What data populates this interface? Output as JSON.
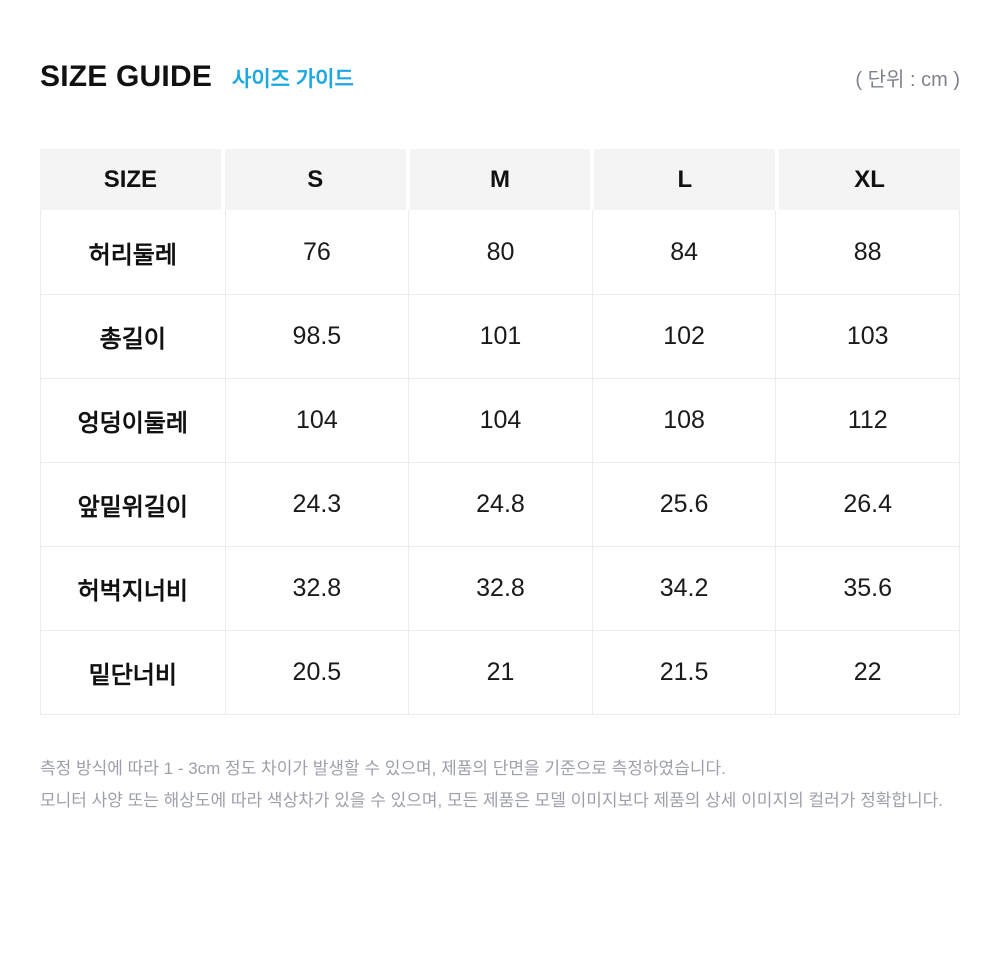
{
  "header": {
    "title": "SIZE GUIDE",
    "subtitle": "사이즈 가이드",
    "unit_label": "( 단위 : cm )"
  },
  "table": {
    "columns": [
      "SIZE",
      "S",
      "M",
      "L",
      "XL"
    ],
    "rows": [
      {
        "label": "허리둘레",
        "values": [
          "76",
          "80",
          "84",
          "88"
        ]
      },
      {
        "label": "총길이",
        "values": [
          "98.5",
          "101",
          "102",
          "103"
        ]
      },
      {
        "label": "엉덩이둘레",
        "values": [
          "104",
          "104",
          "108",
          "112"
        ]
      },
      {
        "label": "앞밑위길이",
        "values": [
          "24.3",
          "24.8",
          "25.6",
          "26.4"
        ]
      },
      {
        "label": "허벅지너비",
        "values": [
          "32.8",
          "32.8",
          "34.2",
          "35.6"
        ]
      },
      {
        "label": "밑단너비",
        "values": [
          "20.5",
          "21",
          "21.5",
          "22"
        ]
      }
    ]
  },
  "notes": [
    "측정 방식에 따라 1 - 3cm 정도 차이가 발생할 수 있으며, 제품의 단면을 기준으로 측정하였습니다.",
    "모니터 사양 또는 해상도에 따라 색상차가 있을 수 있으며, 모든 제품은 모델 이미지보다 제품의 상세 이미지의 컬러가 정확합니다."
  ],
  "colors": {
    "accent_blue": "#1CA8E3",
    "header_bg": "#F4F4F5",
    "border": "#ECECEC",
    "text": "#111111",
    "unit_text": "#7E838B",
    "note_text": "#9CA1A8"
  }
}
